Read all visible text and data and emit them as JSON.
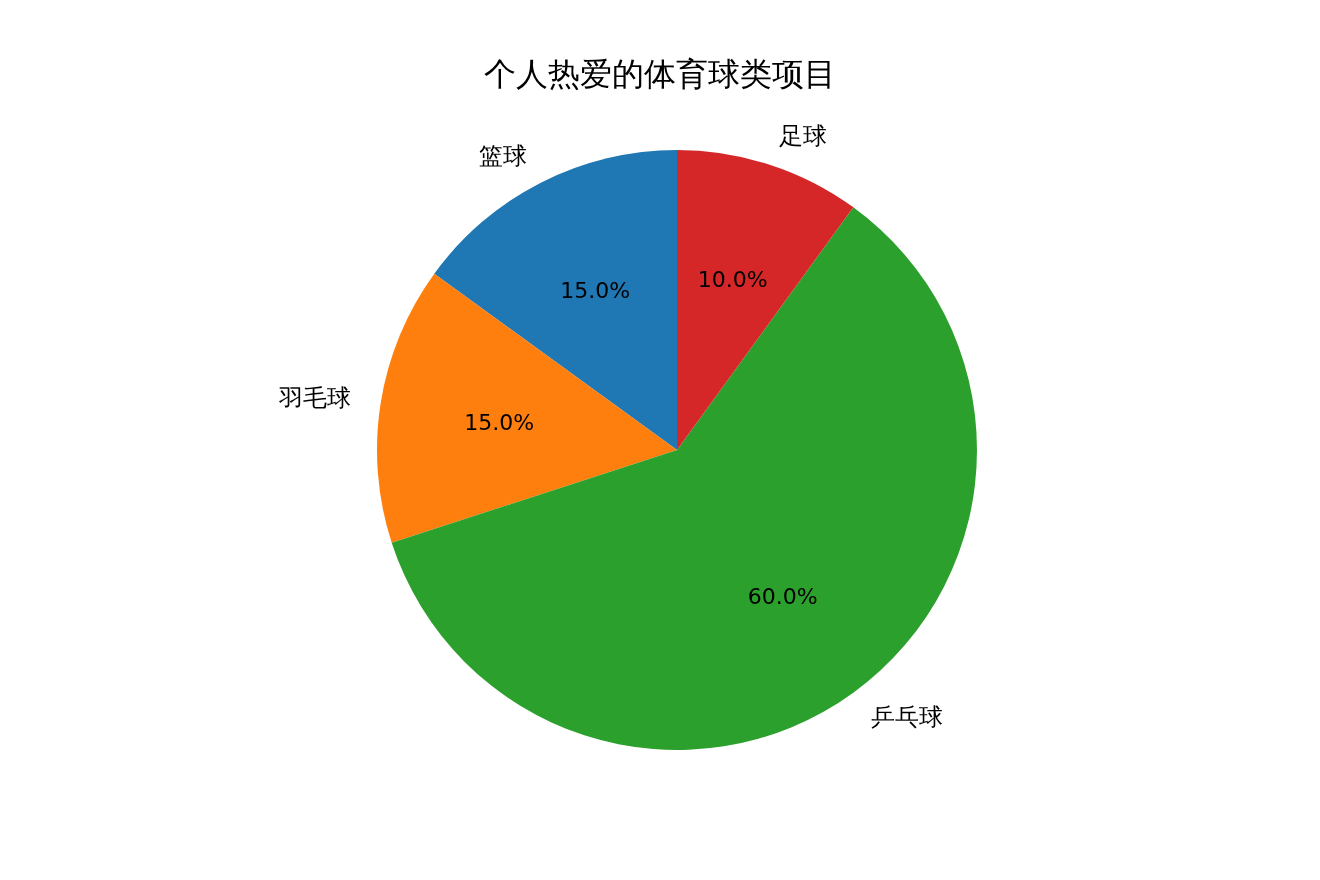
{
  "chart_data": {
    "type": "pie",
    "title": "个人热爱的体育球类项目",
    "categories": [
      "篮球",
      "羽毛球",
      "乒乓球",
      "足球"
    ],
    "values": [
      15,
      15,
      60,
      10
    ],
    "colors": [
      "#1f77b4",
      "#ff7f0e",
      "#2ca02c",
      "#d62728"
    ],
    "value_labels": [
      "15.0%",
      "15.0%",
      "60.0%",
      "10.0%"
    ],
    "legend": false
  }
}
